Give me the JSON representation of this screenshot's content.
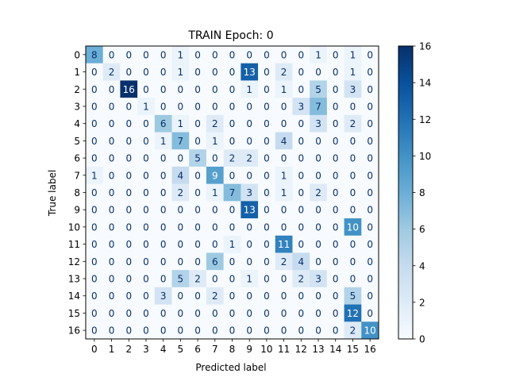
{
  "chart_data": {
    "type": "heatmap",
    "title": "TRAIN Epoch: 0",
    "xlabel": "Predicted label",
    "ylabel": "True label",
    "x_categories": [
      "0",
      "1",
      "2",
      "3",
      "4",
      "5",
      "6",
      "7",
      "8",
      "9",
      "10",
      "11",
      "12",
      "13",
      "14",
      "15",
      "16"
    ],
    "y_categories": [
      "0",
      "1",
      "2",
      "3",
      "4",
      "5",
      "6",
      "7",
      "8",
      "9",
      "10",
      "11",
      "12",
      "13",
      "14",
      "15",
      "16"
    ],
    "matrix": [
      [
        8,
        0,
        0,
        0,
        0,
        1,
        0,
        0,
        0,
        0,
        0,
        0,
        0,
        1,
        0,
        1,
        0
      ],
      [
        0,
        2,
        0,
        0,
        0,
        1,
        0,
        0,
        0,
        13,
        0,
        2,
        0,
        0,
        0,
        1,
        0
      ],
      [
        0,
        0,
        16,
        0,
        0,
        0,
        0,
        0,
        0,
        1,
        0,
        1,
        0,
        5,
        0,
        3,
        0
      ],
      [
        0,
        0,
        0,
        1,
        0,
        0,
        0,
        0,
        0,
        0,
        0,
        0,
        3,
        7,
        0,
        0,
        0
      ],
      [
        0,
        0,
        0,
        0,
        6,
        1,
        0,
        2,
        0,
        0,
        0,
        0,
        0,
        3,
        0,
        2,
        0
      ],
      [
        0,
        0,
        0,
        0,
        1,
        7,
        0,
        1,
        0,
        0,
        0,
        4,
        0,
        0,
        0,
        0,
        0
      ],
      [
        0,
        0,
        0,
        0,
        0,
        0,
        5,
        0,
        2,
        2,
        0,
        0,
        0,
        0,
        0,
        0,
        0
      ],
      [
        1,
        0,
        0,
        0,
        0,
        4,
        0,
        9,
        0,
        0,
        0,
        1,
        0,
        0,
        0,
        0,
        0
      ],
      [
        0,
        0,
        0,
        0,
        0,
        2,
        0,
        1,
        7,
        3,
        0,
        1,
        0,
        2,
        0,
        0,
        0
      ],
      [
        0,
        0,
        0,
        0,
        0,
        0,
        0,
        0,
        0,
        13,
        0,
        0,
        0,
        0,
        0,
        0,
        0
      ],
      [
        0,
        0,
        0,
        0,
        0,
        0,
        0,
        0,
        0,
        0,
        0,
        0,
        0,
        0,
        0,
        10,
        0
      ],
      [
        0,
        0,
        0,
        0,
        0,
        0,
        0,
        0,
        1,
        0,
        0,
        11,
        0,
        0,
        0,
        0,
        0
      ],
      [
        0,
        0,
        0,
        0,
        0,
        0,
        0,
        6,
        0,
        0,
        0,
        2,
        4,
        0,
        0,
        0,
        0
      ],
      [
        0,
        0,
        0,
        0,
        0,
        5,
        2,
        0,
        0,
        1,
        0,
        0,
        2,
        3,
        0,
        0,
        0
      ],
      [
        0,
        0,
        0,
        0,
        3,
        0,
        0,
        2,
        0,
        0,
        0,
        0,
        0,
        0,
        0,
        5,
        0
      ],
      [
        0,
        0,
        0,
        0,
        0,
        0,
        0,
        0,
        0,
        0,
        0,
        0,
        0,
        0,
        0,
        12,
        0
      ],
      [
        0,
        0,
        0,
        0,
        0,
        0,
        0,
        0,
        0,
        0,
        0,
        0,
        0,
        0,
        0,
        2,
        10
      ]
    ],
    "colormap": "Blues",
    "vmin": 0,
    "vmax": 16,
    "colorbar_ticks": [
      0,
      2,
      4,
      6,
      8,
      10,
      12,
      14,
      16
    ],
    "legend": "colorbar-right",
    "grid": false
  }
}
